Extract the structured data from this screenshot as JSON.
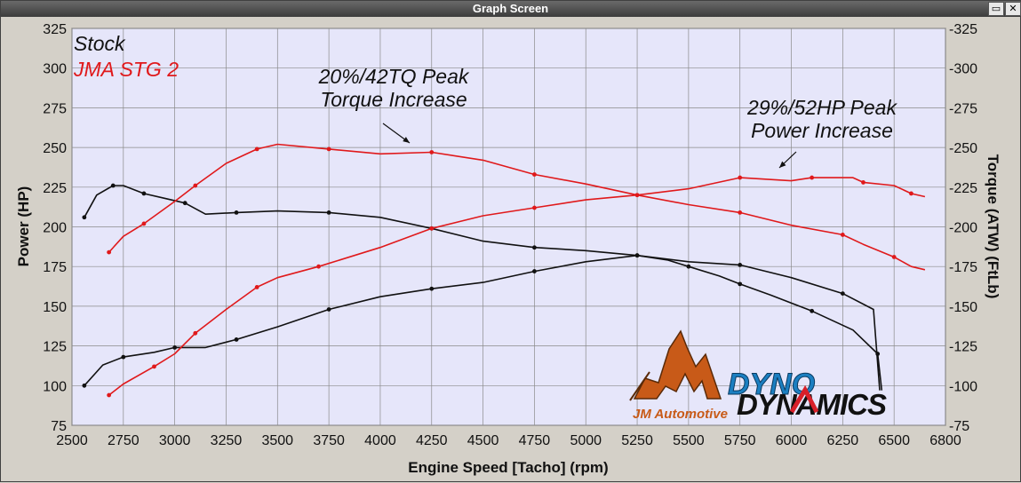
{
  "window": {
    "title": "Graph Screen",
    "buttons": {
      "restore_icon": "restore-icon",
      "close_icon": "close-icon"
    }
  },
  "chart_data": {
    "type": "line",
    "xlabel": "Engine Speed [Tacho] (rpm)",
    "ylabel_left": "Power (HP)",
    "ylabel_right": "Torque (ATW) (FtLb)",
    "xlim": [
      2500,
      6800
    ],
    "ylim": [
      75,
      325
    ],
    "x_ticks": [
      2500,
      2750,
      3000,
      3250,
      3500,
      3750,
      4000,
      4250,
      4500,
      4750,
      5000,
      5250,
      5500,
      5750,
      6000,
      6250,
      6500,
      6800
    ],
    "y_ticks": [
      75,
      100,
      125,
      150,
      175,
      200,
      225,
      250,
      275,
      300,
      325
    ],
    "grid": true,
    "legend": {
      "placement": "top-left",
      "entries": [
        {
          "label": "Stock",
          "color": "#111111"
        },
        {
          "label": "JMA STG 2",
          "color": "#e0191b"
        }
      ]
    },
    "annotations": [
      {
        "lines": [
          "20%/42TQ Peak",
          "Torque Increase"
        ],
        "arrow_to": [
          4300,
          225
        ]
      },
      {
        "lines": [
          "29%/52HP Peak",
          "Power Increase"
        ],
        "arrow_to": [
          5900,
          233
        ]
      }
    ],
    "series": [
      {
        "name": "Stock",
        "kind": "power",
        "color": "#111111",
        "points": [
          [
            2560,
            100
          ],
          [
            2650,
            113
          ],
          [
            2750,
            118
          ],
          [
            2900,
            121
          ],
          [
            3000,
            124
          ],
          [
            3150,
            124
          ],
          [
            3300,
            129
          ],
          [
            3500,
            137
          ],
          [
            3750,
            148
          ],
          [
            4000,
            156
          ],
          [
            4250,
            161
          ],
          [
            4500,
            165
          ],
          [
            4750,
            172
          ],
          [
            5000,
            178
          ],
          [
            5250,
            182
          ],
          [
            5400,
            179
          ],
          [
            5500,
            175
          ],
          [
            5650,
            169
          ],
          [
            5750,
            164
          ],
          [
            5900,
            157
          ],
          [
            6100,
            147
          ],
          [
            6300,
            135
          ],
          [
            6420,
            120
          ],
          [
            6440,
            97
          ]
        ]
      },
      {
        "name": "Stock",
        "kind": "torque",
        "color": "#111111",
        "points": [
          [
            2560,
            206
          ],
          [
            2620,
            220
          ],
          [
            2700,
            226
          ],
          [
            2750,
            226
          ],
          [
            2850,
            221
          ],
          [
            2950,
            218
          ],
          [
            3050,
            215
          ],
          [
            3150,
            208
          ],
          [
            3300,
            209
          ],
          [
            3500,
            210
          ],
          [
            3750,
            209
          ],
          [
            4000,
            206
          ],
          [
            4250,
            199
          ],
          [
            4500,
            191
          ],
          [
            4750,
            187
          ],
          [
            5000,
            185
          ],
          [
            5250,
            182
          ],
          [
            5500,
            178
          ],
          [
            5750,
            176
          ],
          [
            6000,
            168
          ],
          [
            6250,
            158
          ],
          [
            6400,
            148
          ],
          [
            6430,
            97
          ]
        ]
      },
      {
        "name": "JMA STG 2",
        "kind": "power",
        "color": "#e0191b",
        "points": [
          [
            2680,
            94
          ],
          [
            2750,
            101
          ],
          [
            2900,
            112
          ],
          [
            3000,
            120
          ],
          [
            3100,
            133
          ],
          [
            3250,
            148
          ],
          [
            3400,
            162
          ],
          [
            3500,
            168
          ],
          [
            3700,
            175
          ],
          [
            4000,
            187
          ],
          [
            4250,
            199
          ],
          [
            4500,
            207
          ],
          [
            4750,
            212
          ],
          [
            5000,
            217
          ],
          [
            5250,
            220
          ],
          [
            5500,
            224
          ],
          [
            5750,
            231
          ],
          [
            6000,
            229
          ],
          [
            6100,
            231
          ],
          [
            6300,
            231
          ],
          [
            6350,
            228
          ],
          [
            6500,
            226
          ],
          [
            6600,
            221
          ],
          [
            6680,
            219
          ]
        ]
      },
      {
        "name": "JMA STG 2",
        "kind": "torque",
        "color": "#e0191b",
        "points": [
          [
            2680,
            184
          ],
          [
            2750,
            194
          ],
          [
            2850,
            202
          ],
          [
            3000,
            216
          ],
          [
            3100,
            226
          ],
          [
            3250,
            240
          ],
          [
            3400,
            249
          ],
          [
            3500,
            252
          ],
          [
            3750,
            249
          ],
          [
            4000,
            246
          ],
          [
            4250,
            247
          ],
          [
            4500,
            242
          ],
          [
            4750,
            233
          ],
          [
            5000,
            227
          ],
          [
            5250,
            220
          ],
          [
            5500,
            214
          ],
          [
            5750,
            209
          ],
          [
            6000,
            201
          ],
          [
            6250,
            195
          ],
          [
            6350,
            189
          ],
          [
            6500,
            181
          ],
          [
            6600,
            175
          ],
          [
            6680,
            173
          ]
        ]
      }
    ]
  },
  "logo": {
    "brand": "JM Automotive",
    "partner_top": "DYNO",
    "partner_bottom": "DYNAMICS",
    "colors": {
      "orange": "#c85a18",
      "blue": "#1b7fc1",
      "red": "#d8202a"
    }
  }
}
